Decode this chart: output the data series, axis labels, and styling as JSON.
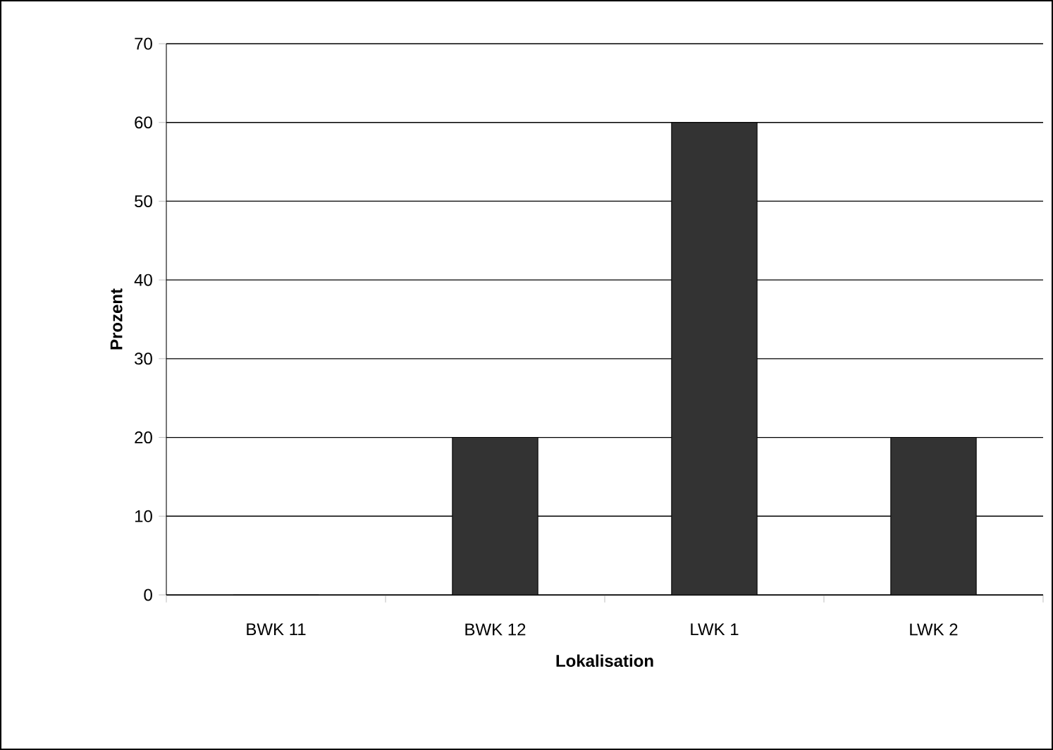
{
  "chart_data": {
    "type": "bar",
    "xlabel": "Lokalisation",
    "ylabel": "Prozent",
    "categories": [
      "BWK 11",
      "BWK 12",
      "LWK 1",
      "LWK 2"
    ],
    "values": [
      0,
      20,
      60,
      20
    ],
    "color": "#333333",
    "ylim": [
      0,
      70
    ],
    "yticks": [
      0,
      10,
      20,
      30,
      40,
      50,
      60,
      70
    ],
    "grid": "y"
  }
}
